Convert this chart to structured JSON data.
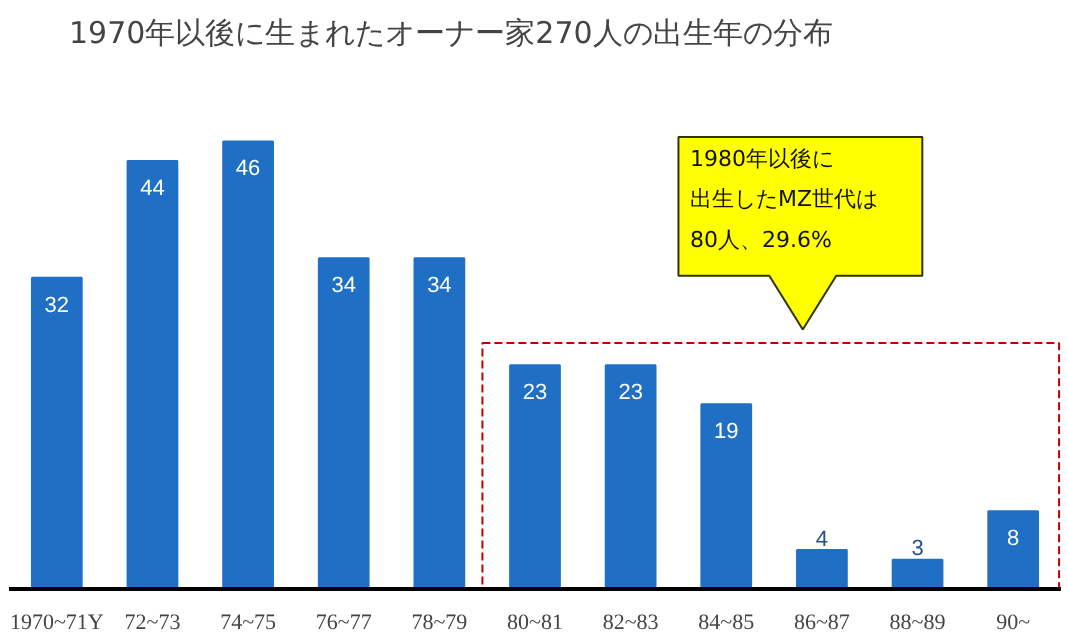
{
  "chart_data": {
    "type": "bar",
    "title": "1970年以後に生まれたオーナー家270人の出生年の分布",
    "categories": [
      "1970~71Y",
      "72~73",
      "74~75",
      "76~77",
      "78~79",
      "80~81",
      "82~83",
      "84~85",
      "86~87",
      "88~89",
      "90~"
    ],
    "values": [
      32,
      44,
      46,
      34,
      34,
      23,
      23,
      19,
      4,
      3,
      8
    ],
    "color": "#1f6fc5",
    "data_labels": true,
    "grid": false,
    "annotations": [
      "1980年以後に",
      "出生したMZ世代は",
      "80人、29.6%"
    ]
  }
}
